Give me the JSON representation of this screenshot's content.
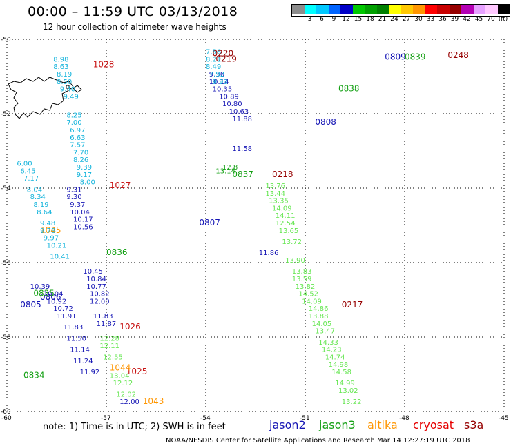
{
  "header": {
    "title": "00:00 – 11:59 UTC 03/13/2018",
    "subtitle": "12 hour collection of altimeter wave heights"
  },
  "color_scale": {
    "unit_label": "(ft)",
    "bins": [
      {
        "label": "",
        "color": "#8c8c8c"
      },
      {
        "label": "3",
        "color": "#00ffff"
      },
      {
        "label": "6",
        "color": "#00c8ff"
      },
      {
        "label": "9",
        "color": "#0064ff"
      },
      {
        "label": "12",
        "color": "#0000c8"
      },
      {
        "label": "15",
        "color": "#00c800"
      },
      {
        "label": "18",
        "color": "#00a000"
      },
      {
        "label": "21",
        "color": "#008000"
      },
      {
        "label": "24",
        "color": "#ffff00"
      },
      {
        "label": "27",
        "color": "#ffc800"
      },
      {
        "label": "30",
        "color": "#ff9600"
      },
      {
        "label": "33",
        "color": "#ff0000"
      },
      {
        "label": "36",
        "color": "#c80000"
      },
      {
        "label": "39",
        "color": "#960000"
      },
      {
        "label": "42",
        "color": "#b400b4"
      },
      {
        "label": "45",
        "color": "#e6a0ff"
      },
      {
        "label": "70",
        "color": "#ffc8ff"
      },
      {
        "label": "(ft)",
        "color": "#000000"
      }
    ]
  },
  "axes": {
    "lat_labels": [
      "-50",
      "-52",
      "-54",
      "-56",
      "-58",
      "-60"
    ],
    "lon_labels": [
      "-60",
      "-57",
      "-54",
      "-51",
      "-48",
      "-45"
    ]
  },
  "tracks": [
    {
      "name": "jason2",
      "color": "#1414b4",
      "time_labels": [
        {
          "text": "0809",
          "lat": -50.55,
          "lon": -48.6
        },
        {
          "text": "0808",
          "lat": -52.3,
          "lon": -50.7
        },
        {
          "text": "0807",
          "lat": -55.0,
          "lon": -54.2
        },
        {
          "text": "0806",
          "lat": -57.0,
          "lon": -59.0
        },
        {
          "text": "0805",
          "lat": -57.2,
          "lon": -59.6
        }
      ],
      "points": [
        {
          "v": "9.36",
          "lat": -51.0,
          "lon": -53.9
        },
        {
          "v": "10.14",
          "lat": -51.2,
          "lon": -53.9
        },
        {
          "v": "10.35",
          "lat": -51.4,
          "lon": -53.8
        },
        {
          "v": "10.89",
          "lat": -51.6,
          "lon": -53.6
        },
        {
          "v": "10.80",
          "lat": -51.8,
          "lon": -53.5
        },
        {
          "v": "10.63",
          "lat": -52.0,
          "lon": -53.3
        },
        {
          "v": "11.88",
          "lat": -52.2,
          "lon": -53.2
        },
        {
          "v": "11.58",
          "lat": -53.0,
          "lon": -53.2
        },
        {
          "v": "9.31",
          "lat": -54.1,
          "lon": -58.2
        },
        {
          "v": "9.30",
          "lat": -54.3,
          "lon": -58.2
        },
        {
          "v": "9.37",
          "lat": -54.5,
          "lon": -58.1
        },
        {
          "v": "10.04",
          "lat": -54.7,
          "lon": -58.1
        },
        {
          "v": "10.17",
          "lat": -54.9,
          "lon": -58.0
        },
        {
          "v": "10.56",
          "lat": -55.1,
          "lon": -58.0
        },
        {
          "v": "10.45",
          "lat": -56.3,
          "lon": -57.7
        },
        {
          "v": "10.84",
          "lat": -56.5,
          "lon": -57.6
        },
        {
          "v": "10.77",
          "lat": -56.7,
          "lon": -57.6
        },
        {
          "v": "10.82",
          "lat": -56.9,
          "lon": -57.5
        },
        {
          "v": "12.00",
          "lat": -57.1,
          "lon": -57.5
        },
        {
          "v": "11.83",
          "lat": -57.5,
          "lon": -57.4
        },
        {
          "v": "11.87",
          "lat": -57.7,
          "lon": -57.3
        },
        {
          "v": "10.39",
          "lat": -56.7,
          "lon": -59.3
        },
        {
          "v": "10.04",
          "lat": -56.9,
          "lon": -58.9
        },
        {
          "v": "10.92",
          "lat": -57.1,
          "lon": -58.8
        },
        {
          "v": "10.72",
          "lat": -57.3,
          "lon": -58.6
        },
        {
          "v": "11.91",
          "lat": -57.5,
          "lon": -58.5
        },
        {
          "v": "11.83",
          "lat": -57.8,
          "lon": -58.3
        },
        {
          "v": "11.50",
          "lat": -58.1,
          "lon": -58.2
        },
        {
          "v": "11.14",
          "lat": -58.4,
          "lon": -58.1
        },
        {
          "v": "11.24",
          "lat": -58.7,
          "lon": -58.0
        },
        {
          "v": "11.92",
          "lat": -59.0,
          "lon": -57.8
        },
        {
          "v": "12.00",
          "lat": -59.8,
          "lon": -56.6
        },
        {
          "v": "11.86",
          "lat": -55.8,
          "lon": -52.4
        }
      ]
    },
    {
      "name": "jason3",
      "color": "#14a014",
      "time_labels": [
        {
          "text": "0839",
          "lat": -50.55,
          "lon": -48.0
        },
        {
          "text": "0838",
          "lat": -51.4,
          "lon": -50.0
        },
        {
          "text": "0837",
          "lat": -53.7,
          "lon": -53.2
        },
        {
          "text": "0836",
          "lat": -55.8,
          "lon": -57.0
        },
        {
          "text": "0835",
          "lat": -56.9,
          "lon": -59.2
        },
        {
          "text": "0834",
          "lat": -59.1,
          "lon": -59.5
        }
      ],
      "points": [
        {
          "v": "13.14",
          "lat": -53.6,
          "lon": -53.7
        },
        {
          "v": "12.8",
          "lat": -53.5,
          "lon": -53.5
        }
      ]
    },
    {
      "name": "jason3-green",
      "color": "#64e650",
      "time_labels": [],
      "points": [
        {
          "v": "13.76",
          "lat": -54.0,
          "lon": -52.2
        },
        {
          "v": "13.44",
          "lat": -54.2,
          "lon": -52.2
        },
        {
          "v": "13.35",
          "lat": -54.4,
          "lon": -52.1
        },
        {
          "v": "14.09",
          "lat": -54.6,
          "lon": -52.0
        },
        {
          "v": "14.11",
          "lat": -54.8,
          "lon": -51.9
        },
        {
          "v": "12.54",
          "lat": -55.0,
          "lon": -51.9
        },
        {
          "v": "13.65",
          "lat": -55.2,
          "lon": -51.8
        },
        {
          "v": "13.72",
          "lat": -55.5,
          "lon": -51.7
        },
        {
          "v": "13.90",
          "lat": -56.0,
          "lon": -51.6
        },
        {
          "v": "13.83",
          "lat": -56.3,
          "lon": -51.4
        },
        {
          "v": "13.59",
          "lat": -56.5,
          "lon": -51.4
        },
        {
          "v": "13.82",
          "lat": -56.7,
          "lon": -51.3
        },
        {
          "v": "14.52",
          "lat": -56.9,
          "lon": -51.2
        },
        {
          "v": "14.09",
          "lat": -57.1,
          "lon": -51.1
        },
        {
          "v": "14.86",
          "lat": -57.3,
          "lon": -50.9
        },
        {
          "v": "13.88",
          "lat": -57.5,
          "lon": -50.9
        },
        {
          "v": "14.05",
          "lat": -57.7,
          "lon": -50.8
        },
        {
          "v": "13.47",
          "lat": -57.9,
          "lon": -50.7
        },
        {
          "v": "14.33",
          "lat": -58.2,
          "lon": -50.6
        },
        {
          "v": "14.23",
          "lat": -58.4,
          "lon": -50.5
        },
        {
          "v": "14.74",
          "lat": -58.6,
          "lon": -50.4
        },
        {
          "v": "14.98",
          "lat": -58.8,
          "lon": -50.3
        },
        {
          "v": "14.58",
          "lat": -59.0,
          "lon": -50.2
        },
        {
          "v": "14.99",
          "lat": -59.3,
          "lon": -50.1
        },
        {
          "v": "13.02",
          "lat": -59.5,
          "lon": -50.0
        },
        {
          "v": "13.22",
          "lat": -59.8,
          "lon": -49.9
        },
        {
          "v": "12.28",
          "lat": -58.1,
          "lon": -57.2
        },
        {
          "v": "12.11",
          "lat": -58.3,
          "lon": -57.2
        },
        {
          "v": "12.55",
          "lat": -58.6,
          "lon": -57.1
        },
        {
          "v": "13.04",
          "lat": -59.1,
          "lon": -56.9
        },
        {
          "v": "12.12",
          "lat": -59.3,
          "lon": -56.8
        },
        {
          "v": "12.02",
          "lat": -59.6,
          "lon": -56.7
        }
      ]
    },
    {
      "name": "cryosat",
      "color": "#c81414",
      "time_labels": [
        {
          "text": "1028",
          "lat": -50.75,
          "lon": -57.4
        },
        {
          "text": "1027",
          "lat": -54.0,
          "lon": -56.9
        },
        {
          "text": "1026",
          "lat": -57.8,
          "lon": -56.6
        },
        {
          "text": "1025",
          "lat": -59.0,
          "lon": -56.4
        }
      ],
      "points": []
    },
    {
      "name": "s3a",
      "color": "#960000",
      "time_labels": [
        {
          "text": "0220",
          "lat": -50.45,
          "lon": -53.8
        },
        {
          "text": "0219",
          "lat": -50.6,
          "lon": -53.7
        },
        {
          "text": "0218",
          "lat": -53.7,
          "lon": -52.0
        },
        {
          "text": "0217",
          "lat": -57.2,
          "lon": -49.9
        },
        {
          "text": "0248",
          "lat": -50.5,
          "lon": -46.7
        }
      ],
      "points": []
    },
    {
      "name": "altika",
      "color": "#ff9600",
      "time_labels": [
        {
          "text": "1045",
          "lat": -55.2,
          "lon": -59.0
        },
        {
          "text": "1044",
          "lat": -58.9,
          "lon": -56.9
        },
        {
          "text": "1043",
          "lat": -59.8,
          "lon": -55.9
        }
      ],
      "points": []
    },
    {
      "name": "cyan-track",
      "color": "#14b4dc",
      "time_labels": [],
      "points": [
        {
          "v": "8.98",
          "lat": -50.6,
          "lon": -58.6
        },
        {
          "v": "8.63",
          "lat": -50.8,
          "lon": -58.6
        },
        {
          "v": "8.19",
          "lat": -51.0,
          "lon": -58.5
        },
        {
          "v": "8.50",
          "lat": -51.2,
          "lon": -58.5
        },
        {
          "v": "9.40",
          "lat": -51.4,
          "lon": -58.4
        },
        {
          "v": "9.49",
          "lat": -51.6,
          "lon": -58.3
        },
        {
          "v": "8.25",
          "lat": -52.1,
          "lon": -58.2
        },
        {
          "v": "7.00",
          "lat": -52.3,
          "lon": -58.2
        },
        {
          "v": "6.97",
          "lat": -52.5,
          "lon": -58.1
        },
        {
          "v": "6.63",
          "lat": -52.7,
          "lon": -58.1
        },
        {
          "v": "7.57",
          "lat": -52.9,
          "lon": -58.1
        },
        {
          "v": "7.70",
          "lat": -53.1,
          "lon": -58.0
        },
        {
          "v": "8.26",
          "lat": -53.3,
          "lon": -58.0
        },
        {
          "v": "9.39",
          "lat": -53.5,
          "lon": -57.9
        },
        {
          "v": "9.17",
          "lat": -53.7,
          "lon": -57.9
        },
        {
          "v": "8.00",
          "lat": -53.9,
          "lon": -57.8
        },
        {
          "v": "6.00",
          "lat": -53.4,
          "lon": -59.7
        },
        {
          "v": "6.45",
          "lat": -53.6,
          "lon": -59.6
        },
        {
          "v": "7.17",
          "lat": -53.8,
          "lon": -59.5
        },
        {
          "v": "8.04",
          "lat": -54.1,
          "lon": -59.4
        },
        {
          "v": "8.34",
          "lat": -54.3,
          "lon": -59.3
        },
        {
          "v": "8.19",
          "lat": -54.5,
          "lon": -59.2
        },
        {
          "v": "8.64",
          "lat": -54.7,
          "lon": -59.1
        },
        {
          "v": "9.48",
          "lat": -55.0,
          "lon": -59.0
        },
        {
          "v": "9.78",
          "lat": -55.2,
          "lon": -59.0
        },
        {
          "v": "9.97",
          "lat": -55.4,
          "lon": -58.9
        },
        {
          "v": "10.21",
          "lat": -55.6,
          "lon": -58.8
        },
        {
          "v": "10.41",
          "lat": -55.9,
          "lon": -58.7
        },
        {
          "v": "7.56",
          "lat": -50.4,
          "lon": -54.0
        },
        {
          "v": "8.21",
          "lat": -50.6,
          "lon": -54.0
        },
        {
          "v": "8.49",
          "lat": -50.8,
          "lon": -54.0
        },
        {
          "v": "7.92",
          "lat": -51.0,
          "lon": -53.9
        },
        {
          "v": "9.93",
          "lat": -51.2,
          "lon": -53.8
        }
      ]
    }
  ],
  "footer": {
    "note": "note:  1) Time is in UTC;  2) SWH is in feet",
    "legend": [
      {
        "label": "jason2",
        "color": "#1414b4"
      },
      {
        "label": "jason3",
        "color": "#14a014"
      },
      {
        "label": "altika",
        "color": "#ff9600"
      },
      {
        "label": "cryosat",
        "color": "#e60000"
      },
      {
        "label": "s3a",
        "color": "#960000"
      }
    ],
    "credit": "NOAA/NESDIS Center for Satellite Applications and Research   Mar 14 12:27:19 UTC 2018"
  }
}
